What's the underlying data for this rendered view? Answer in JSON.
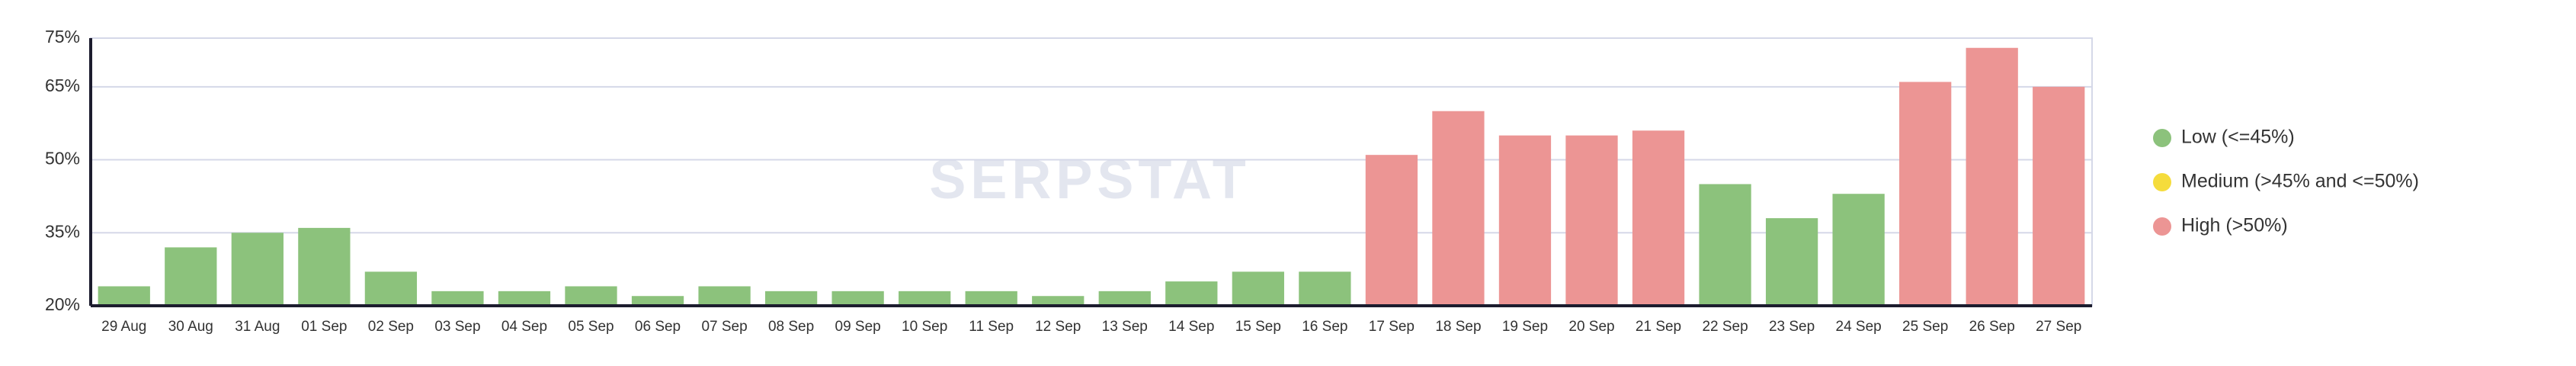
{
  "chart_data": {
    "type": "bar",
    "watermark": "SERPSTAT",
    "categories": [
      "29 Aug",
      "30 Aug",
      "31 Aug",
      "01 Sep",
      "02 Sep",
      "03 Sep",
      "04 Sep",
      "05 Sep",
      "06 Sep",
      "07 Sep",
      "08 Sep",
      "09 Sep",
      "10 Sep",
      "11 Sep",
      "12 Sep",
      "13 Sep",
      "14 Sep",
      "15 Sep",
      "16 Sep",
      "17 Sep",
      "18 Sep",
      "19 Sep",
      "20 Sep",
      "21 Sep",
      "22 Sep",
      "23 Sep",
      "24 Sep",
      "25 Sep",
      "26 Sep",
      "27 Sep"
    ],
    "values": [
      24,
      32,
      35,
      36,
      27,
      23,
      23,
      24,
      22,
      24,
      23,
      23,
      23,
      23,
      22,
      23,
      25,
      27,
      27,
      51,
      60,
      55,
      55,
      56,
      45,
      38,
      43,
      66,
      73,
      65
    ],
    "colors": [
      "#8cc27c",
      "#8cc27c",
      "#8cc27c",
      "#8cc27c",
      "#8cc27c",
      "#8cc27c",
      "#8cc27c",
      "#8cc27c",
      "#8cc27c",
      "#8cc27c",
      "#8cc27c",
      "#8cc27c",
      "#8cc27c",
      "#8cc27c",
      "#8cc27c",
      "#8cc27c",
      "#8cc27c",
      "#8cc27c",
      "#8cc27c",
      "#ec9594",
      "#ec9594",
      "#ec9594",
      "#ec9594",
      "#ec9594",
      "#8cc27c",
      "#8cc27c",
      "#8cc27c",
      "#ec9594",
      "#ec9594",
      "#ec9594"
    ],
    "legend": [
      {
        "name": "Low (<=45%)",
        "color": "#8cc27c"
      },
      {
        "name": "Medium (>45% and <=50%)",
        "color": "#f5dc3c"
      },
      {
        "name": "High (>50%)",
        "color": "#ec9594"
      }
    ],
    "legend_position": "right",
    "ylim": [
      20,
      75
    ],
    "yticks": [
      {
        "value": 20,
        "label": "20%"
      },
      {
        "value": 35,
        "label": "35%"
      },
      {
        "value": 50,
        "label": "50%"
      },
      {
        "value": 65,
        "label": "65%"
      },
      {
        "value": 75,
        "label": "75%"
      }
    ],
    "grid": true
  }
}
